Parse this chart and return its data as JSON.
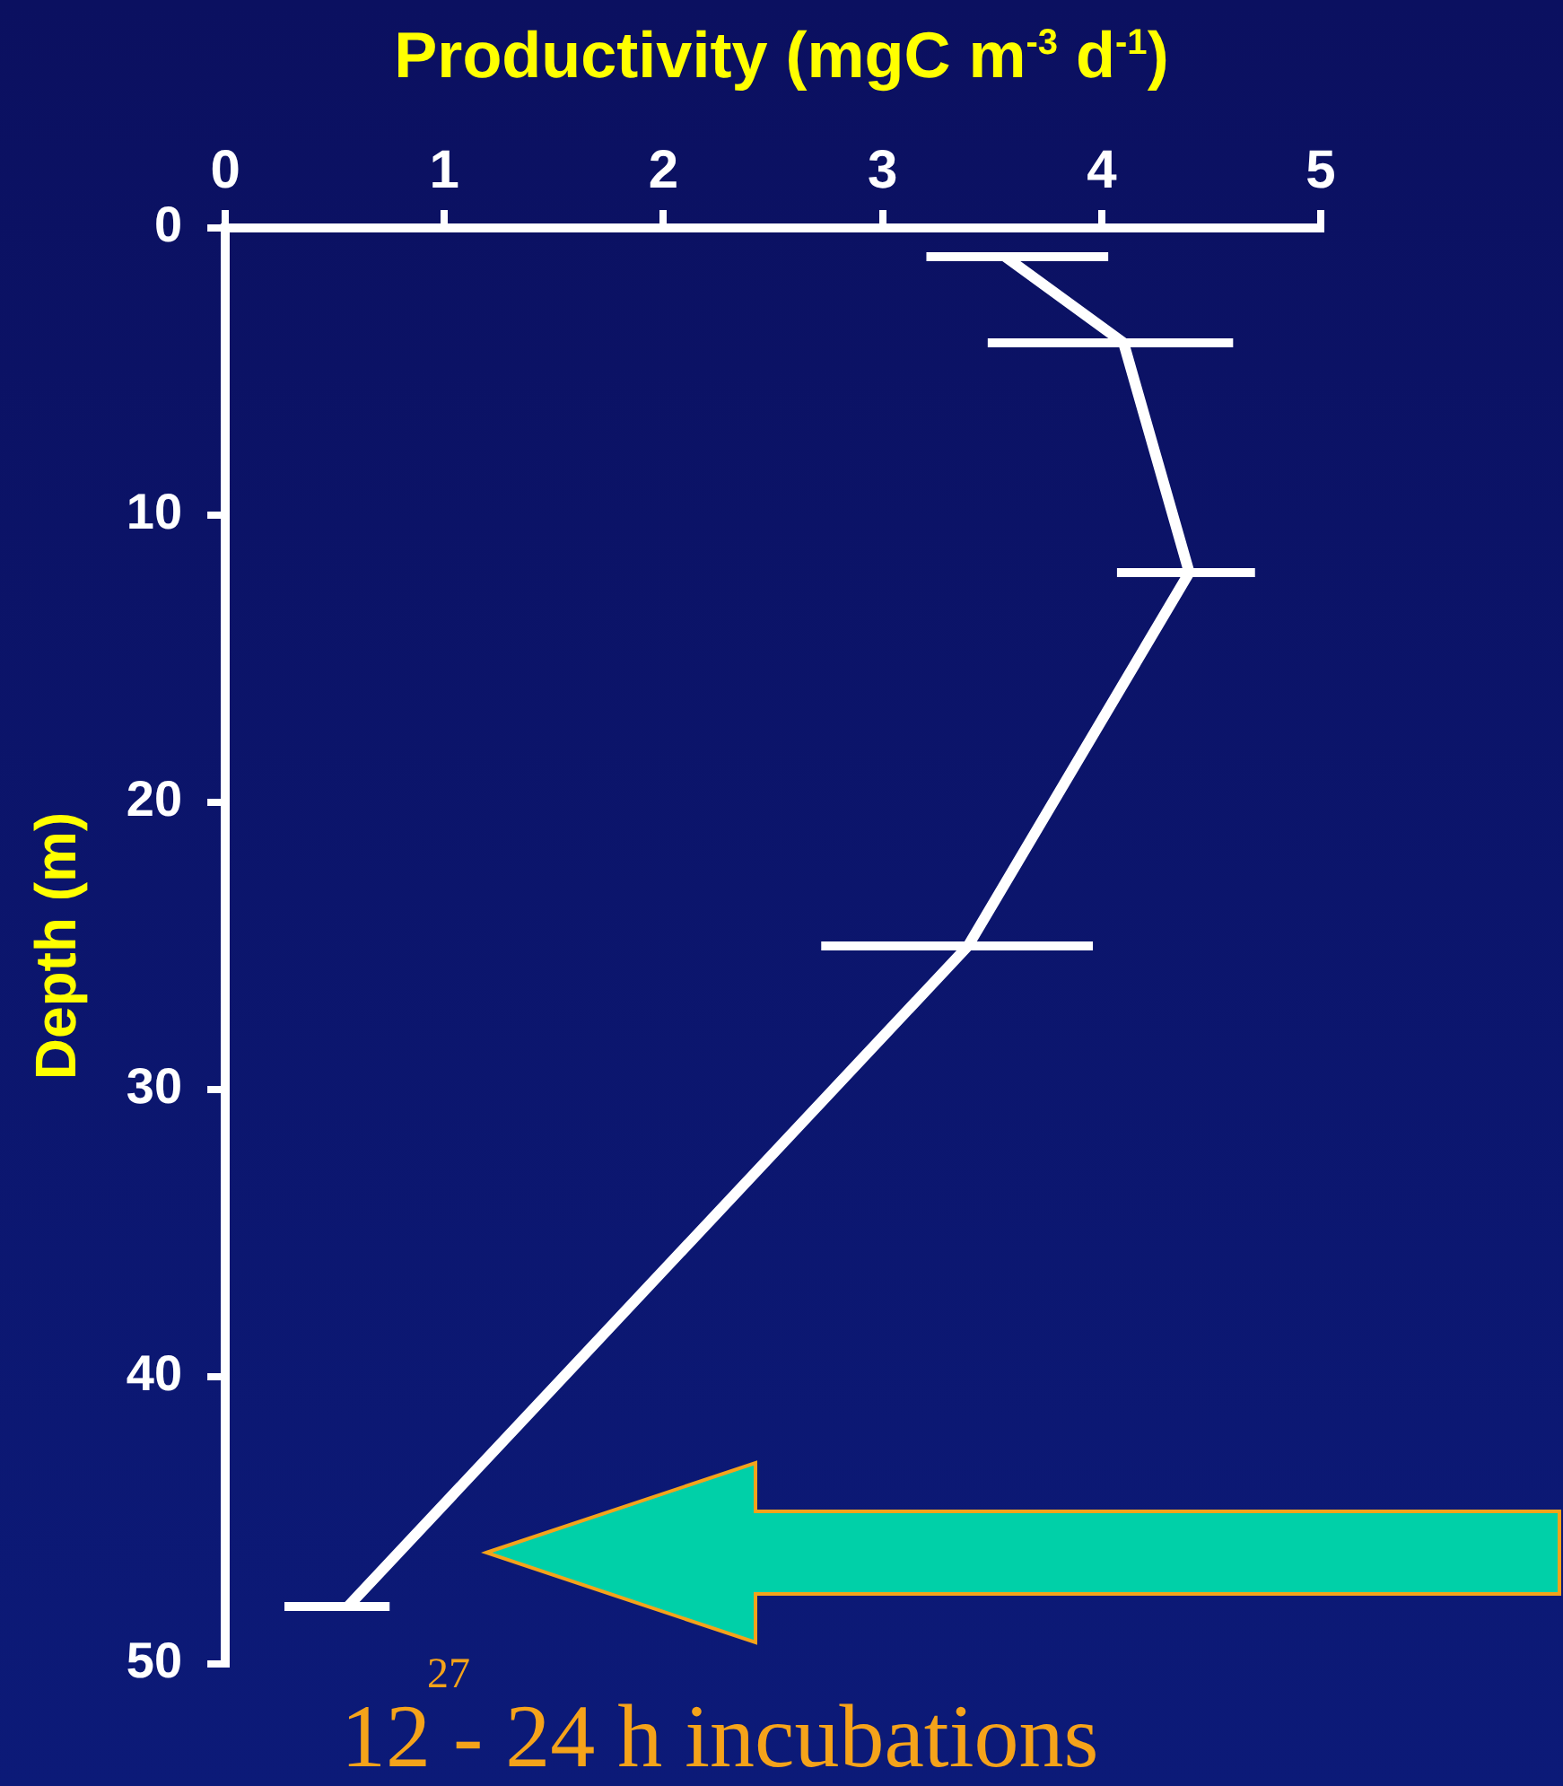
{
  "chart_data": {
    "type": "line",
    "xlabel": "Productivity (mgC m$^{-3}$ d$^{-1}$)",
    "ylabel": "Depth (m)",
    "x": [
      3.56,
      4.1,
      4.4,
      3.39,
      0.56
    ],
    "series": [
      {
        "color": "#ffffff",
        "values": [
          1,
          4,
          12,
          25,
          48
        ],
        "xerrors": [
          [
            3.2,
            4.03
          ],
          [
            3.48,
            4.6
          ],
          [
            4.07,
            4.7
          ],
          [
            2.72,
            3.96
          ],
          [
            0.27,
            0.75
          ]
        ]
      }
    ],
    "xlim": [
      0,
      5
    ],
    "xticks": [
      0,
      1,
      2,
      3,
      4,
      5
    ],
    "ylim": [
      50,
      0
    ],
    "yticks": [
      0,
      10,
      20,
      30,
      40,
      50
    ],
    "grid": false,
    "legend": false,
    "marker": "none",
    "line_style": "solid",
    "annotations": [
      "27",
      "12 - 24 h incubations"
    ]
  }
}
